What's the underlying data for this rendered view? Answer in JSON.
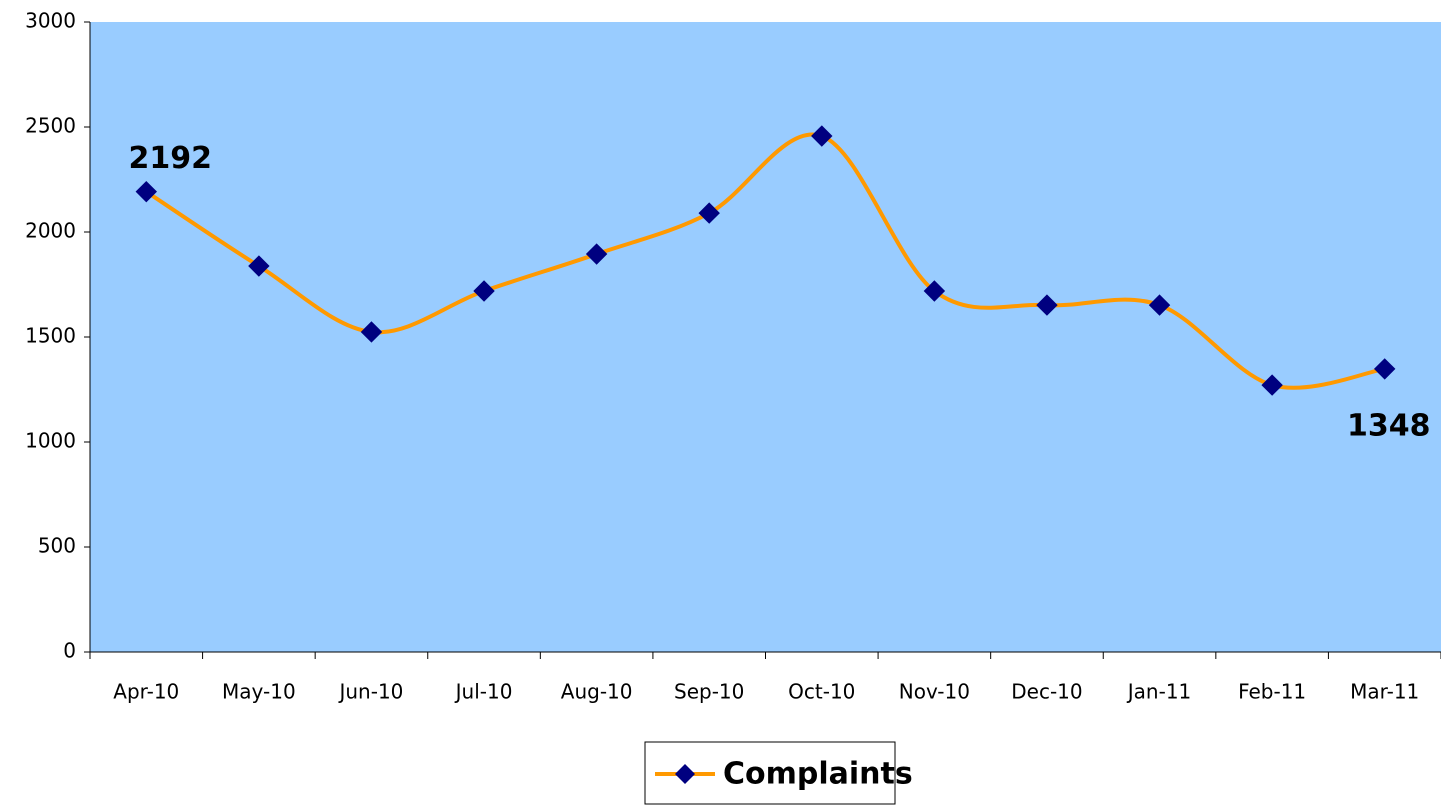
{
  "chart_data": {
    "type": "line",
    "categories": [
      "Apr-10",
      "May-10",
      "Jun-10",
      "Jul-10",
      "Aug-10",
      "Sep-10",
      "Oct-10",
      "Nov-10",
      "Dec-10",
      "Jan-11",
      "Feb-11",
      "Mar-11"
    ],
    "series": [
      {
        "name": "Complaints",
        "color": "#ff9900",
        "marker_color": "#000080",
        "values": [
          2192,
          1838,
          1524,
          1719,
          1895,
          2090,
          2457,
          1719,
          1652,
          1652,
          1271,
          1348
        ],
        "value_labels": [
          "2192",
          null,
          null,
          null,
          null,
          null,
          null,
          null,
          null,
          null,
          null,
          "1348"
        ]
      }
    ],
    "ylim": [
      0,
      3000
    ],
    "yticks": [
      0,
      500,
      1000,
      1500,
      2000,
      2500,
      3000
    ],
    "plot_background": "#99ccff",
    "legend": "bottom"
  }
}
